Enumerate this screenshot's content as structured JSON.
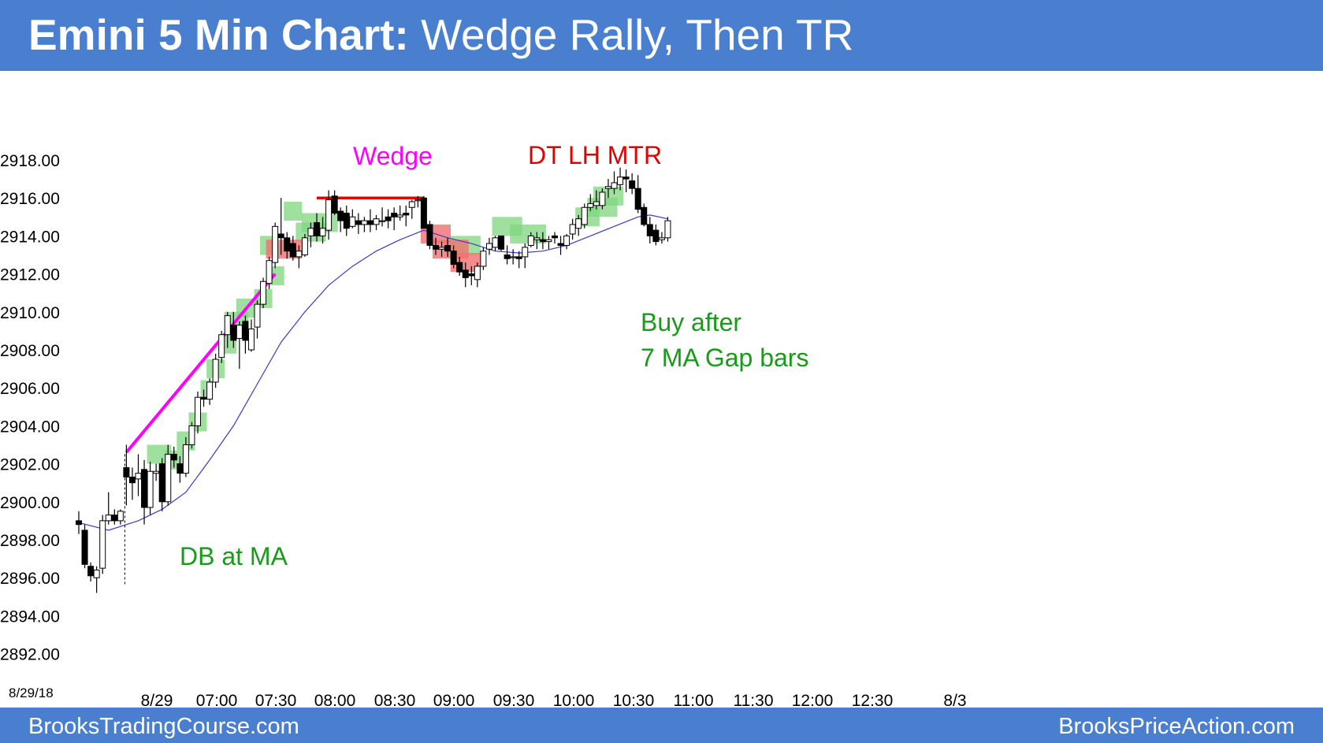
{
  "header": {
    "title_bold": "Emini 5 Min Chart:",
    "title_rest": " Wedge Rally, Then TR"
  },
  "footer": {
    "left": "BrooksTradingCourse.com",
    "right": "BrooksPriceAction.com"
  },
  "colors": {
    "header_bg": "#4a7fcf",
    "wedge_line": "#ff00ff",
    "ma_line": "#3a3ac8",
    "signal_green": "#7fd67f",
    "signal_red": "#f07070",
    "dt_line": "#e00000"
  },
  "chart_data": {
    "type": "candlestick",
    "title": "Emini 5 Min Chart: Wedge Rally, Then TR",
    "date_label": "8/29/18",
    "y_ticks": [
      "2918.00",
      "2916.00",
      "2914.00",
      "2912.00",
      "2910.00",
      "2908.00",
      "2906.00",
      "2904.00",
      "2902.00",
      "2900.00",
      "2898.00",
      "2896.00",
      "2894.00",
      "2892.00"
    ],
    "x_labels": [
      "8/29",
      "07:00",
      "07:30",
      "08:00",
      "08:30",
      "09:00",
      "09:30",
      "10:00",
      "10:30",
      "11:00",
      "11:30",
      "12:00",
      "12:30",
      "8/3"
    ],
    "ylim": [
      2891,
      2919
    ],
    "bars": [
      [
        2899.0,
        2899.5,
        2898.3,
        2898.8
      ],
      [
        2898.5,
        2898.8,
        2896.5,
        2896.7
      ],
      [
        2896.6,
        2896.8,
        2895.8,
        2896.1
      ],
      [
        2896.0,
        2896.6,
        2895.2,
        2896.4
      ],
      [
        2896.5,
        2899.3,
        2896.2,
        2899.0
      ],
      [
        2899.0,
        2900.5,
        2898.8,
        2899.3
      ],
      [
        2899.3,
        2899.6,
        2898.8,
        2899.0
      ],
      [
        2899.0,
        2899.6,
        2898.8,
        2899.5
      ],
      [
        2901.8,
        2903.0,
        2899.8,
        2901.3
      ],
      [
        2901.3,
        2901.8,
        2900.1,
        2901.0
      ],
      [
        2901.2,
        2902.5,
        2900.3,
        2901.5
      ],
      [
        2901.7,
        2902.2,
        2898.8,
        2899.7
      ],
      [
        2899.7,
        2902.1,
        2899.3,
        2901.6
      ],
      [
        2901.5,
        2902.0,
        2901.1,
        2901.6
      ],
      [
        2902.0,
        2902.3,
        2899.5,
        2900.0
      ],
      [
        2900.0,
        2903.0,
        2899.8,
        2902.5
      ],
      [
        2902.5,
        2902.9,
        2901.8,
        2902.2
      ],
      [
        2902.0,
        2902.4,
        2901.0,
        2901.5
      ],
      [
        2901.5,
        2903.4,
        2901.3,
        2903.0
      ],
      [
        2903.0,
        2904.2,
        2902.8,
        2904.0
      ],
      [
        2904.0,
        2905.8,
        2903.6,
        2905.5
      ],
      [
        2905.5,
        2905.9,
        2905.0,
        2905.4
      ],
      [
        2905.4,
        2906.5,
        2905.1,
        2906.3
      ],
      [
        2906.3,
        2907.8,
        2906.0,
        2907.5
      ],
      [
        2907.6,
        2909.0,
        2907.3,
        2908.8
      ],
      [
        2908.8,
        2910.0,
        2908.1,
        2909.8
      ],
      [
        2909.3,
        2910.0,
        2908.1,
        2908.5
      ],
      [
        2908.6,
        2909.5,
        2907.0,
        2909.3
      ],
      [
        2909.5,
        2909.8,
        2907.8,
        2908.5
      ],
      [
        2908.0,
        2909.6,
        2907.9,
        2909.1
      ],
      [
        2909.2,
        2910.6,
        2908.6,
        2910.4
      ],
      [
        2910.4,
        2911.8,
        2910.2,
        2911.6
      ],
      [
        2911.5,
        2912.9,
        2911.2,
        2912.7
      ],
      [
        2912.6,
        2914.7,
        2912.3,
        2914.5
      ],
      [
        2914.1,
        2916.0,
        2913.0,
        2913.9
      ],
      [
        2913.9,
        2914.2,
        2912.8,
        2913.2
      ],
      [
        2913.6,
        2914.0,
        2912.7,
        2912.9
      ],
      [
        2912.9,
        2913.5,
        2912.3,
        2913.2
      ],
      [
        2913.0,
        2914.1,
        2912.9,
        2913.9
      ],
      [
        2914.0,
        2914.7,
        2913.4,
        2914.4
      ],
      [
        2914.7,
        2915.2,
        2913.7,
        2914.0
      ],
      [
        2914.0,
        2915.0,
        2913.6,
        2914.4
      ],
      [
        2914.3,
        2916.4,
        2913.8,
        2915.9
      ],
      [
        2916.1,
        2916.4,
        2915.1,
        2915.2
      ],
      [
        2915.3,
        2915.5,
        2914.2,
        2914.8
      ],
      [
        2915.2,
        2915.6,
        2914.0,
        2914.4
      ],
      [
        2914.5,
        2915.4,
        2914.4,
        2915.0
      ],
      [
        2914.8,
        2915.2,
        2914.1,
        2914.6
      ],
      [
        2914.6,
        2915.0,
        2914.2,
        2914.8
      ],
      [
        2914.8,
        2915.4,
        2914.2,
        2914.6
      ],
      [
        2914.6,
        2915.1,
        2914.3,
        2914.9
      ],
      [
        2914.8,
        2915.5,
        2914.5,
        2914.8
      ],
      [
        2915.0,
        2915.4,
        2914.4,
        2914.8
      ],
      [
        2915.2,
        2915.5,
        2914.3,
        2915.0
      ],
      [
        2915.0,
        2915.6,
        2914.8,
        2915.1
      ],
      [
        2915.2,
        2915.6,
        2914.5,
        2915.1
      ],
      [
        2915.5,
        2915.9,
        2914.9,
        2915.8
      ],
      [
        2915.9,
        2916.1,
        2915.5,
        2915.9
      ],
      [
        2916.0,
        2916.1,
        2914.4,
        2914.4
      ],
      [
        2914.6,
        2914.8,
        2913.3,
        2913.5
      ],
      [
        2913.5,
        2913.9,
        2913.0,
        2913.3
      ],
      [
        2913.3,
        2913.7,
        2912.9,
        2913.4
      ],
      [
        2913.5,
        2913.9,
        2912.9,
        2913.2
      ],
      [
        2913.2,
        2913.5,
        2912.3,
        2912.5
      ],
      [
        2912.6,
        2912.9,
        2911.9,
        2912.1
      ],
      [
        2912.2,
        2912.6,
        2911.3,
        2911.8
      ],
      [
        2912.0,
        2912.4,
        2911.4,
        2911.9
      ],
      [
        2911.7,
        2912.6,
        2911.3,
        2912.4
      ],
      [
        2912.4,
        2913.4,
        2912.2,
        2913.2
      ],
      [
        2913.3,
        2913.9,
        2913.0,
        2913.6
      ],
      [
        2913.4,
        2914.0,
        2913.2,
        2913.9
      ],
      [
        2914.0,
        2914.0,
        2913.2,
        2913.3
      ],
      [
        2913.0,
        2913.5,
        2912.5,
        2912.8
      ],
      [
        2912.9,
        2913.3,
        2912.5,
        2912.9
      ],
      [
        2912.9,
        2913.2,
        2912.3,
        2912.8
      ],
      [
        2912.9,
        2913.6,
        2912.3,
        2913.4
      ],
      [
        2913.5,
        2914.2,
        2913.4,
        2914.0
      ],
      [
        2913.8,
        2914.2,
        2913.3,
        2913.9
      ],
      [
        2913.8,
        2914.2,
        2913.3,
        2913.7
      ],
      [
        2913.7,
        2914.0,
        2913.3,
        2913.8
      ],
      [
        2914.0,
        2914.2,
        2913.6,
        2913.9
      ],
      [
        2913.6,
        2914.0,
        2913.0,
        2913.5
      ],
      [
        2913.5,
        2914.1,
        2913.3,
        2914.0
      ],
      [
        2914.1,
        2914.9,
        2913.8,
        2914.6
      ],
      [
        2914.4,
        2915.1,
        2914.0,
        2914.9
      ],
      [
        2914.6,
        2915.7,
        2914.4,
        2915.5
      ],
      [
        2915.5,
        2916.2,
        2915.3,
        2915.7
      ],
      [
        2915.6,
        2916.4,
        2915.4,
        2915.8
      ],
      [
        2915.6,
        2916.5,
        2915.4,
        2916.3
      ],
      [
        2916.5,
        2917.0,
        2916.0,
        2916.6
      ],
      [
        2916.5,
        2917.4,
        2916.2,
        2916.8
      ],
      [
        2916.7,
        2917.6,
        2916.4,
        2917.1
      ],
      [
        2917.1,
        2917.5,
        2916.3,
        2917.0
      ],
      [
        2916.9,
        2917.3,
        2916.2,
        2916.5
      ],
      [
        2916.5,
        2917.2,
        2915.2,
        2915.4
      ],
      [
        2915.5,
        2915.7,
        2914.5,
        2914.6
      ],
      [
        2914.6,
        2915.0,
        2913.6,
        2914.0
      ],
      [
        2914.3,
        2914.6,
        2913.5,
        2913.7
      ],
      [
        2913.8,
        2914.2,
        2913.6,
        2913.9
      ],
      [
        2913.9,
        2915.0,
        2913.7,
        2914.8
      ]
    ],
    "ma": [
      [
        0,
        2898.9
      ],
      [
        5,
        2898.5
      ],
      [
        10,
        2899.0
      ],
      [
        14,
        2899.6
      ],
      [
        18,
        2900.5
      ],
      [
        22,
        2902.2
      ],
      [
        26,
        2904.0
      ],
      [
        30,
        2906.2
      ],
      [
        34,
        2908.4
      ],
      [
        38,
        2910.0
      ],
      [
        42,
        2911.4
      ],
      [
        46,
        2912.4
      ],
      [
        50,
        2913.2
      ],
      [
        54,
        2913.8
      ],
      [
        58,
        2914.3
      ],
      [
        62,
        2913.9
      ],
      [
        66,
        2913.6
      ],
      [
        70,
        2913.2
      ],
      [
        74,
        2913.1
      ],
      [
        78,
        2913.2
      ],
      [
        82,
        2913.5
      ],
      [
        86,
        2914.0
      ],
      [
        90,
        2914.5
      ],
      [
        94,
        2915.0
      ],
      [
        96,
        2915.1
      ],
      [
        99,
        2914.9
      ]
    ],
    "green_boxes": [
      [
        12,
        15,
        2902.0,
        2903.0
      ],
      [
        15,
        17,
        2901.7,
        2902.7
      ],
      [
        17,
        19,
        2902.7,
        2903.7
      ],
      [
        19,
        21,
        2903.7,
        2904.7
      ],
      [
        21,
        22,
        2905.4,
        2906.4
      ],
      [
        22,
        24,
        2906.5,
        2907.5
      ],
      [
        24,
        26,
        2907.8,
        2908.8
      ],
      [
        25,
        28,
        2909.0,
        2910.0
      ],
      [
        27,
        30,
        2909.7,
        2910.7
      ],
      [
        30,
        32,
        2910.2,
        2911.2
      ],
      [
        32,
        34,
        2911.4,
        2912.4
      ],
      [
        31,
        33,
        2913.0,
        2914.0
      ],
      [
        35,
        37,
        2914.8,
        2915.8
      ],
      [
        37,
        41,
        2913.7,
        2914.7
      ],
      [
        38,
        43,
        2914.2,
        2915.2
      ],
      [
        63,
        67,
        2913.0,
        2914.0
      ],
      [
        70,
        74,
        2914.0,
        2915.0
      ],
      [
        73,
        78,
        2913.6,
        2914.6
      ],
      [
        84,
        87,
        2914.5,
        2915.5
      ],
      [
        86,
        90,
        2915.0,
        2916.0
      ],
      [
        87,
        91,
        2915.6,
        2916.6
      ]
    ],
    "red_boxes": [
      [
        32,
        37,
        2912.8,
        2913.8
      ],
      [
        58,
        62,
        2913.6,
        2914.6
      ],
      [
        60,
        65,
        2912.8,
        2913.8
      ],
      [
        63,
        67,
        2912.1,
        2913.1
      ]
    ],
    "wedge_line": [
      [
        8,
        2902.6
      ],
      [
        33,
        2912.0
      ]
    ],
    "dt_line": [
      [
        40,
        2916.0
      ],
      [
        58,
        2916.0
      ]
    ],
    "annotations": [
      "Wedge",
      "DT LH MTR",
      "DB at MA",
      "Buy after",
      "7 MA Gap bars"
    ]
  }
}
